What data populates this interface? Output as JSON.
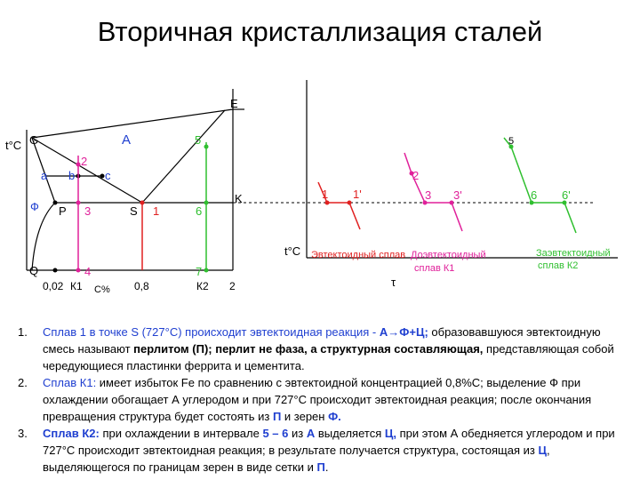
{
  "title": "Вторичная кристаллизация сталей",
  "colors": {
    "red": "#e02020",
    "pink": "#e0209a",
    "green": "#2fbf2f",
    "blue": "#1f3fd0",
    "black": "#000000"
  },
  "diagram": {
    "phase_labels": {
      "E": "E",
      "A": "A",
      "G": "G",
      "a": "a",
      "b": "b",
      "c": "c",
      "phi": "Ф",
      "P": "P",
      "S": "S",
      "K": "K",
      "Q": "Q"
    },
    "y_axis_label": "t°C",
    "composition": {
      "x_002": "0,02",
      "x_k1": "К1",
      "x_percent": "C%",
      "x_08": "0,8",
      "x_k2": "К2",
      "x_2": "2"
    },
    "points": {
      "p1": "1",
      "p2": "2",
      "p3": "3",
      "p4": "4",
      "p5": "5",
      "p6": "6",
      "p7": "7"
    }
  },
  "curves": {
    "y_axis_label": "t°C",
    "x_axis_label": "τ",
    "points": {
      "r1": "1",
      "r1p": "1'",
      "p2": "2",
      "p3": "3",
      "p3p": "3'",
      "g5": "5",
      "g6": "6",
      "g6p": "6'"
    },
    "caption_red": "Эвтектоидный сплав",
    "caption_pink_line1": "Доэвтектоидный",
    "caption_pink_line2": "сплав К1",
    "caption_green_line1": "Заэвтектоидный",
    "caption_green_line2": "сплав К2"
  },
  "notes": [
    {
      "num": "1.",
      "parts": [
        {
          "t": "Сплав 1 в точке S (727°С) происходит эвтектоидная реакция - ",
          "c": "blue",
          "b": false
        },
        {
          "t": "А→Ф+Ц;",
          "c": "blue",
          "b": true
        },
        {
          "t": " образовавшуюся эвтектоидную смесь называют ",
          "c": "",
          "b": false
        },
        {
          "t": "перлитом (П); перлит не фаза, а структурная составляющая,",
          "c": "",
          "b": true
        },
        {
          "t": " представляющая собой чередующиеся пластинки феррита и цементита.",
          "c": "",
          "b": false
        }
      ]
    },
    {
      "num": "2.",
      "parts": [
        {
          "t": "Сплав К1:",
          "c": "blue",
          "b": false
        },
        {
          "t": " имеет избыток Fe по сравнению с эвтектоидной концентрацией 0,8%С; выделение Ф при охлаждении обогащает А углеродом и при 727°С происходит эвтектоидная реакция; после окончания превращения структура будет состоять из ",
          "c": "",
          "b": false
        },
        {
          "t": "П",
          "c": "blue",
          "b": true
        },
        {
          "t": " и зерен ",
          "c": "",
          "b": false
        },
        {
          "t": "Ф.",
          "c": "blue",
          "b": true
        }
      ]
    },
    {
      "num": "3.",
      "parts": [
        {
          "t": "Сплав К2:",
          "c": "blue",
          "b": true
        },
        {
          "t": " при охлаждении в интервале ",
          "c": "",
          "b": false
        },
        {
          "t": "5 – 6",
          "c": "blue",
          "b": true
        },
        {
          "t": " из ",
          "c": "",
          "b": false
        },
        {
          "t": "А",
          "c": "blue",
          "b": true
        },
        {
          "t": " выделяется ",
          "c": "",
          "b": false
        },
        {
          "t": "Ц,",
          "c": "blue",
          "b": true
        },
        {
          "t": " при этом А обедняется углеродом и при 727°С происходит эвтектоидная реакция; в результате получается структура, состоящая из ",
          "c": "",
          "b": false
        },
        {
          "t": "Ц",
          "c": "blue",
          "b": true
        },
        {
          "t": ", выделяющегося по границам зерен в виде сетки и ",
          "c": "",
          "b": false
        },
        {
          "t": "П",
          "c": "blue",
          "b": true
        },
        {
          "t": ".",
          "c": "",
          "b": false
        }
      ]
    }
  ]
}
